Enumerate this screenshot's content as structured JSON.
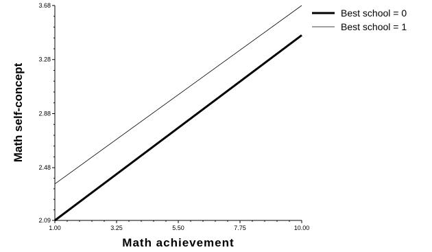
{
  "chart_data": {
    "type": "line",
    "title": "",
    "xlabel": "Math achievement",
    "ylabel": "Math self-concept",
    "xlim": [
      1.0,
      10.0
    ],
    "ylim": [
      2.09,
      3.68
    ],
    "xticks": [
      "1.00",
      "3.25",
      "5.50",
      "7.75",
      "10.00"
    ],
    "yticks": [
      "2.09",
      "2.48",
      "2.88",
      "3.28",
      "3.68"
    ],
    "grid": false,
    "legend_position": "top-right",
    "series": [
      {
        "name": "Best school = 0",
        "x": [
          1.0,
          10.0
        ],
        "y": [
          2.09,
          3.46
        ],
        "color": "#000000",
        "style": "thick"
      },
      {
        "name": "Best school = 1",
        "x": [
          1.0,
          10.0
        ],
        "y": [
          2.36,
          3.68
        ],
        "color": "#000000",
        "style": "thin"
      }
    ]
  }
}
